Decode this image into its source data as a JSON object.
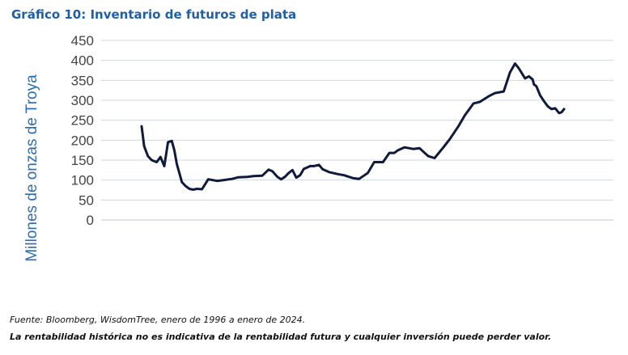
{
  "title": "Gráfico 10: Inventario de futuros de plata",
  "source": "Fuente: Bloomberg, WisdomTree, enero de 1996 a enero de 2024.",
  "disclaimer": "La rentabilidad histórica no es indicativa de la rentabilidad futura y cualquier inversión puede perder valor.",
  "colors": {
    "title": "#1f5fa8",
    "ylabel": "#2e6db4",
    "ticks": "#444444",
    "grid": "#d0d7e0",
    "line": "#0f1a3c"
  },
  "chart_data": {
    "type": "line",
    "ylabel": "Millones de onzas de Troya",
    "ylim": [
      0,
      450
    ],
    "yticks": [
      0,
      50,
      100,
      150,
      200,
      250,
      300,
      350,
      400,
      450
    ],
    "grid": true,
    "x_range": [
      "1996-01",
      "2024-01"
    ],
    "series": [
      {
        "x": [
          "1996-01",
          "1996-03",
          "1996-06",
          "1996-09",
          "1997-01",
          "1997-04",
          "1997-07",
          "1997-10",
          "1998-01",
          "1998-03",
          "1998-05",
          "1998-07",
          "1998-09",
          "1998-12",
          "1999-03",
          "1999-06",
          "1999-09",
          "2000-01",
          "2000-06",
          "2001-01",
          "2001-06",
          "2002-01",
          "2002-06",
          "2003-01",
          "2003-06",
          "2004-01",
          "2004-06",
          "2004-09",
          "2005-01",
          "2005-04",
          "2005-07",
          "2005-10",
          "2006-01",
          "2006-04",
          "2006-07",
          "2006-10",
          "2007-01",
          "2007-03",
          "2007-06",
          "2007-10",
          "2008-01",
          "2008-06",
          "2009-01",
          "2009-06",
          "2010-01",
          "2010-06",
          "2011-01",
          "2011-06",
          "2012-01",
          "2012-06",
          "2012-10",
          "2013-01",
          "2013-06",
          "2014-01",
          "2014-06",
          "2015-01",
          "2015-06",
          "2016-01",
          "2016-06",
          "2017-01",
          "2017-06",
          "2018-01",
          "2018-06",
          "2018-09",
          "2019-01",
          "2019-06",
          "2020-01",
          "2020-06",
          "2020-10",
          "2021-01",
          "2021-06",
          "2021-09",
          "2021-12",
          "2022-01",
          "2022-03",
          "2022-06",
          "2022-09",
          "2022-12",
          "2023-03",
          "2023-06",
          "2023-09",
          "2023-11",
          "2024-01"
        ],
        "values": [
          235,
          185,
          160,
          150,
          145,
          158,
          135,
          195,
          198,
          175,
          140,
          118,
          95,
          85,
          78,
          76,
          78,
          77,
          102,
          98,
          100,
          103,
          107,
          108,
          110,
          111,
          126,
          122,
          108,
          102,
          108,
          118,
          125,
          106,
          112,
          128,
          132,
          135,
          135,
          138,
          127,
          120,
          115,
          112,
          105,
          103,
          118,
          145,
          145,
          168,
          168,
          175,
          182,
          178,
          180,
          160,
          155,
          182,
          202,
          235,
          262,
          292,
          296,
          302,
          310,
          318,
          322,
          370,
          392,
          380,
          355,
          360,
          352,
          340,
          335,
          312,
          298,
          285,
          278,
          280,
          268,
          270,
          278
        ]
      }
    ]
  }
}
